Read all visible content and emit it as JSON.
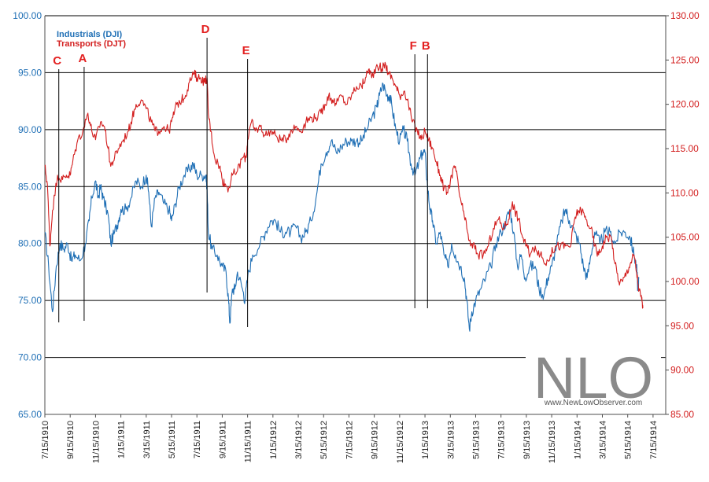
{
  "chart_data": {
    "type": "line",
    "title": "",
    "xlabel": "",
    "ylabel_left": "",
    "ylabel_right": "",
    "left_axis": {
      "min": 65,
      "max": 100,
      "ticks": [
        "65.00",
        "70.00",
        "75.00",
        "80.00",
        "85.00",
        "90.00",
        "95.00",
        "100.00"
      ],
      "color": "#1f6fb5"
    },
    "right_axis": {
      "min": 85,
      "max": 130,
      "ticks": [
        "85.00",
        "90.00",
        "95.00",
        "100.00",
        "105.00",
        "110.00",
        "115.00",
        "120.00",
        "125.00",
        "130.00"
      ],
      "color": "#d31f1f"
    },
    "x_ticks": [
      "7/15/1910",
      "9/15/1910",
      "11/15/1910",
      "1/15/1911",
      "3/15/1911",
      "5/15/1911",
      "7/15/1911",
      "9/15/1911",
      "11/15/1911",
      "1/15/1912",
      "3/15/1912",
      "5/15/1912",
      "7/15/1912",
      "9/15/1912",
      "11/15/1912",
      "1/15/1913",
      "3/15/1913",
      "5/15/1913",
      "7/15/1913",
      "9/15/1913",
      "11/15/1913",
      "1/15/1914",
      "3/15/1914",
      "5/15/1914",
      "7/15/1914"
    ],
    "x_start_index": 0,
    "x_end_index": 24.5,
    "grid": "horizontal",
    "legend": {
      "placement": "top-left",
      "entries": [
        {
          "label": "Industrials (DJI)",
          "color": "#1f6fb5"
        },
        {
          "label": "Transports (DJT)",
          "color": "#d31f1f"
        }
      ]
    },
    "series": [
      {
        "name": "Industrials (DJI)",
        "axis": "left",
        "color": "#1f6fb5",
        "points": [
          [
            0,
            81
          ],
          [
            0.15,
            78
          ],
          [
            0.3,
            74
          ],
          [
            0.45,
            78
          ],
          [
            0.6,
            80
          ],
          [
            0.75,
            79.5
          ],
          [
            0.9,
            80
          ],
          [
            1.05,
            78.5
          ],
          [
            1.2,
            79
          ],
          [
            1.4,
            78.5
          ],
          [
            1.6,
            80
          ],
          [
            1.75,
            82
          ],
          [
            1.85,
            84
          ],
          [
            2.0,
            85.5
          ],
          [
            2.1,
            84
          ],
          [
            2.2,
            85
          ],
          [
            2.3,
            84
          ],
          [
            2.5,
            82.5
          ],
          [
            2.6,
            80
          ],
          [
            2.75,
            81
          ],
          [
            2.9,
            82
          ],
          [
            3.0,
            83
          ],
          [
            3.2,
            83
          ],
          [
            3.4,
            84
          ],
          [
            3.6,
            85.5
          ],
          [
            3.8,
            85
          ],
          [
            4.0,
            86
          ],
          [
            4.1,
            84.5
          ],
          [
            4.2,
            81.5
          ],
          [
            4.35,
            84
          ],
          [
            4.5,
            84.5
          ],
          [
            4.7,
            83.5
          ],
          [
            4.9,
            83
          ],
          [
            5.0,
            82
          ],
          [
            5.15,
            83.5
          ],
          [
            5.3,
            85
          ],
          [
            5.5,
            86
          ],
          [
            5.7,
            86.5
          ],
          [
            5.85,
            87
          ],
          [
            6.0,
            86
          ],
          [
            6.2,
            86
          ],
          [
            6.35,
            86
          ],
          [
            6.4,
            85
          ],
          [
            6.45,
            81
          ],
          [
            6.6,
            79.5
          ],
          [
            6.8,
            79
          ],
          [
            7.0,
            78
          ],
          [
            7.15,
            77.5
          ],
          [
            7.25,
            75
          ],
          [
            7.3,
            73
          ],
          [
            7.4,
            76
          ],
          [
            7.5,
            76
          ],
          [
            7.6,
            77.5
          ],
          [
            7.8,
            76
          ],
          [
            7.9,
            75
          ],
          [
            8.0,
            77
          ],
          [
            8.2,
            79
          ],
          [
            8.5,
            80
          ],
          [
            8.7,
            81
          ],
          [
            8.9,
            82
          ],
          [
            9.1,
            82
          ],
          [
            9.3,
            81
          ],
          [
            9.5,
            81
          ],
          [
            9.7,
            81
          ],
          [
            9.9,
            81.5
          ],
          [
            10.1,
            80.5
          ],
          [
            10.3,
            81
          ],
          [
            10.5,
            82
          ],
          [
            10.7,
            84
          ],
          [
            10.9,
            87
          ],
          [
            11.1,
            88
          ],
          [
            11.3,
            89
          ],
          [
            11.5,
            88
          ],
          [
            11.7,
            88.5
          ],
          [
            11.9,
            89
          ],
          [
            12.1,
            89
          ],
          [
            12.3,
            89
          ],
          [
            12.5,
            89
          ],
          [
            12.7,
            90
          ],
          [
            12.9,
            91
          ],
          [
            13.1,
            92
          ],
          [
            13.2,
            93
          ],
          [
            13.35,
            94
          ],
          [
            13.5,
            93
          ],
          [
            13.6,
            93
          ],
          [
            13.7,
            92
          ],
          [
            13.85,
            90
          ],
          [
            14.0,
            89
          ],
          [
            14.15,
            90
          ],
          [
            14.3,
            89
          ],
          [
            14.45,
            87
          ],
          [
            14.6,
            86
          ],
          [
            14.75,
            87
          ],
          [
            14.9,
            88
          ],
          [
            15.0,
            88
          ],
          [
            15.1,
            85
          ],
          [
            15.2,
            83
          ],
          [
            15.3,
            82
          ],
          [
            15.45,
            80
          ],
          [
            15.6,
            81
          ],
          [
            15.75,
            79
          ],
          [
            15.9,
            78
          ],
          [
            16.05,
            80
          ],
          [
            16.2,
            79
          ],
          [
            16.4,
            78
          ],
          [
            16.55,
            77
          ],
          [
            16.65,
            75
          ],
          [
            16.75,
            72.5
          ],
          [
            16.85,
            74
          ],
          [
            17.0,
            75
          ],
          [
            17.2,
            76
          ],
          [
            17.4,
            77
          ],
          [
            17.6,
            78
          ],
          [
            17.8,
            80
          ],
          [
            18.0,
            81
          ],
          [
            18.2,
            82
          ],
          [
            18.35,
            83
          ],
          [
            18.5,
            81
          ],
          [
            18.65,
            78
          ],
          [
            18.8,
            79
          ],
          [
            18.95,
            77
          ],
          [
            19.15,
            78
          ],
          [
            19.35,
            78
          ],
          [
            19.5,
            76
          ],
          [
            19.7,
            75.5
          ],
          [
            19.85,
            77
          ],
          [
            20.0,
            78
          ],
          [
            20.2,
            80
          ],
          [
            20.4,
            82
          ],
          [
            20.55,
            83
          ],
          [
            20.7,
            82
          ],
          [
            20.9,
            81
          ],
          [
            21.1,
            80
          ],
          [
            21.25,
            78
          ],
          [
            21.4,
            77
          ],
          [
            21.55,
            79
          ],
          [
            21.7,
            81
          ],
          [
            21.9,
            80
          ],
          [
            22.1,
            81
          ],
          [
            22.3,
            81
          ],
          [
            22.5,
            80
          ],
          [
            22.7,
            81
          ],
          [
            22.9,
            81
          ],
          [
            23.1,
            80.5
          ],
          [
            23.25,
            79
          ],
          [
            23.35,
            78
          ],
          [
            23.4,
            76
          ],
          [
            23.45,
            77
          ]
        ]
      },
      {
        "name": "Transports (DJT)",
        "axis": "right",
        "color": "#d31f1f",
        "points": [
          [
            0,
            113
          ],
          [
            0.1,
            111
          ],
          [
            0.2,
            104
          ],
          [
            0.3,
            108
          ],
          [
            0.5,
            112
          ],
          [
            0.7,
            111.5
          ],
          [
            0.85,
            112
          ],
          [
            1.0,
            112
          ],
          [
            1.1,
            113.5
          ],
          [
            1.3,
            116
          ],
          [
            1.5,
            117
          ],
          [
            1.7,
            119
          ],
          [
            1.85,
            117
          ],
          [
            2.0,
            116
          ],
          [
            2.2,
            118
          ],
          [
            2.35,
            117.5
          ],
          [
            2.5,
            115
          ],
          [
            2.6,
            113
          ],
          [
            2.75,
            114
          ],
          [
            2.9,
            115
          ],
          [
            3.1,
            116
          ],
          [
            3.3,
            117
          ],
          [
            3.45,
            118.5
          ],
          [
            3.6,
            120
          ],
          [
            3.8,
            120.5
          ],
          [
            4.0,
            119.5
          ],
          [
            4.2,
            118
          ],
          [
            4.35,
            117
          ],
          [
            4.5,
            117
          ],
          [
            4.7,
            117.5
          ],
          [
            4.9,
            117
          ],
          [
            5.05,
            118.5
          ],
          [
            5.2,
            120
          ],
          [
            5.4,
            120.5
          ],
          [
            5.55,
            121
          ],
          [
            5.7,
            122.5
          ],
          [
            5.9,
            123.5
          ],
          [
            6.0,
            123
          ],
          [
            6.15,
            123
          ],
          [
            6.3,
            122.5
          ],
          [
            6.4,
            123
          ],
          [
            6.45,
            119
          ],
          [
            6.55,
            117
          ],
          [
            6.7,
            114
          ],
          [
            6.9,
            113
          ],
          [
            7.0,
            111.5
          ],
          [
            7.1,
            111
          ],
          [
            7.25,
            110.5
          ],
          [
            7.4,
            112
          ],
          [
            7.6,
            112.5
          ],
          [
            7.8,
            114
          ],
          [
            7.95,
            114
          ],
          [
            8.0,
            116
          ],
          [
            8.15,
            118
          ],
          [
            8.3,
            117
          ],
          [
            8.5,
            117.5
          ],
          [
            8.7,
            116.5
          ],
          [
            8.9,
            117
          ],
          [
            9.1,
            116.5
          ],
          [
            9.3,
            116
          ],
          [
            9.5,
            116
          ],
          [
            9.7,
            117
          ],
          [
            9.9,
            117.5
          ],
          [
            10.1,
            117
          ],
          [
            10.3,
            118
          ],
          [
            10.5,
            118.5
          ],
          [
            10.7,
            118.5
          ],
          [
            10.9,
            119
          ],
          [
            11.05,
            120
          ],
          [
            11.2,
            121
          ],
          [
            11.35,
            120.5
          ],
          [
            11.5,
            120
          ],
          [
            11.7,
            121
          ],
          [
            11.9,
            120
          ],
          [
            12.1,
            121
          ],
          [
            12.3,
            122
          ],
          [
            12.5,
            122
          ],
          [
            12.65,
            123
          ],
          [
            12.8,
            124
          ],
          [
            12.9,
            123
          ],
          [
            13.1,
            124.5
          ],
          [
            13.3,
            124
          ],
          [
            13.45,
            124.5
          ],
          [
            13.55,
            123.5
          ],
          [
            13.7,
            123
          ],
          [
            13.85,
            122
          ],
          [
            14.0,
            121
          ],
          [
            14.2,
            121.5
          ],
          [
            14.35,
            120
          ],
          [
            14.5,
            118
          ],
          [
            14.7,
            117
          ],
          [
            14.85,
            116
          ],
          [
            15.0,
            117
          ],
          [
            15.15,
            116
          ],
          [
            15.3,
            115
          ],
          [
            15.45,
            113.5
          ],
          [
            15.6,
            112
          ],
          [
            15.75,
            110.5
          ],
          [
            15.9,
            110
          ],
          [
            16.05,
            112
          ],
          [
            16.2,
            113
          ],
          [
            16.35,
            110
          ],
          [
            16.5,
            108
          ],
          [
            16.65,
            106
          ],
          [
            16.8,
            104
          ],
          [
            16.95,
            104
          ],
          [
            17.1,
            103
          ],
          [
            17.3,
            103
          ],
          [
            17.5,
            104
          ],
          [
            17.7,
            106
          ],
          [
            17.9,
            107
          ],
          [
            18.1,
            106
          ],
          [
            18.3,
            107
          ],
          [
            18.45,
            109
          ],
          [
            18.55,
            108
          ],
          [
            18.7,
            107
          ],
          [
            18.85,
            105
          ],
          [
            19.0,
            104
          ],
          [
            19.15,
            103
          ],
          [
            19.35,
            104
          ],
          [
            19.55,
            103
          ],
          [
            19.75,
            102
          ],
          [
            19.95,
            103
          ],
          [
            20.15,
            104
          ],
          [
            20.35,
            104
          ],
          [
            20.55,
            104
          ],
          [
            20.75,
            104
          ],
          [
            20.9,
            107
          ],
          [
            21.05,
            108
          ],
          [
            21.2,
            108
          ],
          [
            21.35,
            107
          ],
          [
            21.55,
            106
          ],
          [
            21.7,
            104
          ],
          [
            21.85,
            103
          ],
          [
            22.0,
            104
          ],
          [
            22.15,
            105
          ],
          [
            22.35,
            105
          ],
          [
            22.5,
            102
          ],
          [
            22.65,
            100
          ],
          [
            22.8,
            100
          ],
          [
            22.95,
            101
          ],
          [
            23.1,
            102
          ],
          [
            23.25,
            103
          ],
          [
            23.35,
            101
          ],
          [
            23.45,
            99
          ],
          [
            23.55,
            98
          ],
          [
            23.6,
            97
          ]
        ]
      }
    ],
    "annotations": [
      {
        "label": "C",
        "x": 0.55
      },
      {
        "label": "A",
        "x": 1.55
      },
      {
        "label": "D",
        "x": 6.4
      },
      {
        "label": "E",
        "x": 8.0
      },
      {
        "label": "F",
        "x": 14.6
      },
      {
        "label": "B",
        "x": 15.1
      }
    ]
  },
  "watermark": {
    "logo_text": "NLO",
    "site_text": "www.NewLowObserver.com"
  }
}
